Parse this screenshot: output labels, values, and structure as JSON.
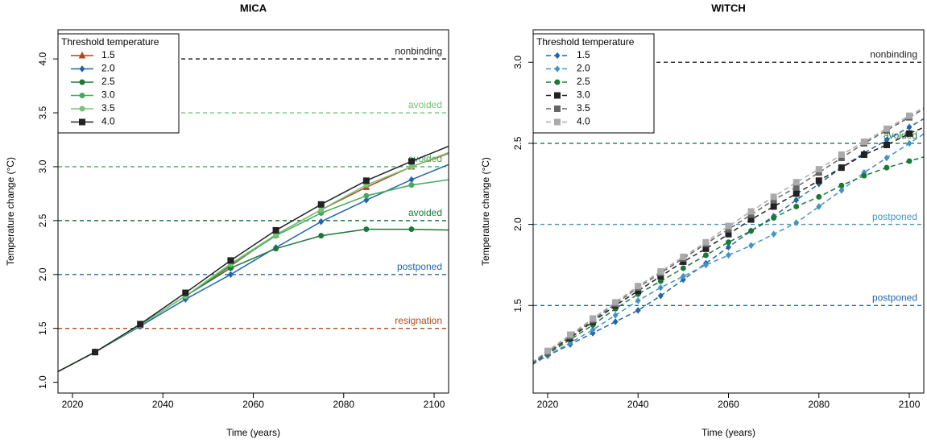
{
  "chart_data": [
    {
      "type": "line",
      "title": "MICA",
      "xlabel": "Time (years)",
      "ylabel": "Temperature change (°C)",
      "legend_title": "Threshold temperature",
      "line_style": "solid",
      "xlim": [
        2016.8,
        2103.2
      ],
      "xticks": [
        2020,
        2040,
        2060,
        2080,
        2100
      ],
      "ylim": [
        0.9,
        4.27
      ],
      "yticks": [
        {
          "value": 1,
          "label": "1.0"
        },
        1.5,
        {
          "value": 2,
          "label": "2.0"
        },
        2.5,
        {
          "value": 3,
          "label": "3.0"
        },
        3.5,
        {
          "value": 4,
          "label": "4.0"
        }
      ],
      "x": [
        2015,
        2025,
        2035,
        2045,
        2055,
        2065,
        2075,
        2085,
        2095,
        2105
      ],
      "series": [
        {
          "name": "1.5",
          "color": "#b5451b",
          "marker": "triangle",
          "values": [
            1.06,
            1.28,
            1.53,
            1.8,
            2.08,
            2.37,
            2.6,
            2.81,
            3.0,
            3.15
          ]
        },
        {
          "name": "2.0",
          "color": "#2166ac",
          "marker": "diamond",
          "values": [
            1.06,
            1.28,
            1.52,
            1.77,
            2.0,
            2.25,
            2.49,
            2.69,
            2.88,
            3.05
          ]
        },
        {
          "name": "2.5",
          "color": "#1b7837",
          "marker": "circle",
          "values": [
            1.06,
            1.28,
            1.53,
            1.8,
            2.06,
            2.24,
            2.36,
            2.42,
            2.42,
            2.41
          ]
        },
        {
          "name": "3.0",
          "color": "#41ab5d",
          "marker": "circle",
          "values": [
            1.06,
            1.28,
            1.53,
            1.8,
            2.09,
            2.36,
            2.57,
            2.73,
            2.83,
            2.89
          ]
        },
        {
          "name": "3.5",
          "color": "#74c476",
          "marker": "circle",
          "values": [
            1.06,
            1.28,
            1.53,
            1.8,
            2.1,
            2.37,
            2.6,
            2.83,
            3.0,
            3.16
          ]
        },
        {
          "name": "4.0",
          "color": "#222222",
          "marker": "square",
          "values": [
            1.06,
            1.28,
            1.54,
            1.83,
            2.13,
            2.41,
            2.65,
            2.87,
            3.05,
            3.22
          ]
        }
      ],
      "hlines": [
        {
          "value": 4.0,
          "label": "nonbinding",
          "color": "#222222"
        },
        {
          "value": 3.5,
          "label": "avoided",
          "color": "#74c476"
        },
        {
          "value": 3.0,
          "label": "avoided",
          "color": "#41ab5d"
        },
        {
          "value": 2.5,
          "label": "avoided",
          "color": "#1b7837"
        },
        {
          "value": 2.0,
          "label": "postponed",
          "color": "#2166ac"
        },
        {
          "value": 1.5,
          "label": "resignation",
          "color": "#b5451b"
        }
      ]
    },
    {
      "type": "line",
      "title": "WITCH",
      "xlabel": "Time (years)",
      "ylabel": "Temperature change (°C)",
      "legend_title": "Threshold temperature",
      "line_style": "dashed",
      "xlim": [
        2016.8,
        2103.2
      ],
      "xticks": [
        2020,
        2040,
        2060,
        2080,
        2100
      ],
      "ylim": [
        0.96,
        3.2
      ],
      "yticks": [
        1.5,
        {
          "value": 2,
          "label": "2.0"
        },
        2.5,
        {
          "value": 3,
          "label": "3.0"
        }
      ],
      "x": [
        2015,
        2020,
        2025,
        2030,
        2035,
        2040,
        2045,
        2050,
        2055,
        2060,
        2065,
        2070,
        2075,
        2080,
        2085,
        2090,
        2095,
        2100,
        2105
      ],
      "series": [
        {
          "name": "1.5",
          "color": "#2166ac",
          "marker": "diamond",
          "values": [
            1.12,
            1.19,
            1.26,
            1.33,
            1.4,
            1.47,
            1.56,
            1.66,
            1.76,
            1.86,
            1.96,
            2.05,
            2.15,
            2.25,
            2.35,
            2.44,
            2.52,
            2.6,
            2.68
          ]
        },
        {
          "name": "2.0",
          "color": "#4393c3",
          "marker": "diamond",
          "values": [
            1.11,
            1.19,
            1.27,
            1.35,
            1.44,
            1.53,
            1.61,
            1.68,
            1.75,
            1.81,
            1.87,
            1.94,
            2.01,
            2.11,
            2.21,
            2.32,
            2.41,
            2.5,
            2.59
          ]
        },
        {
          "name": "2.5",
          "color": "#1b7837",
          "marker": "circle",
          "values": [
            1.11,
            1.2,
            1.29,
            1.38,
            1.48,
            1.57,
            1.65,
            1.73,
            1.81,
            1.89,
            1.96,
            2.04,
            2.11,
            2.17,
            2.24,
            2.3,
            2.35,
            2.39,
            2.43
          ]
        },
        {
          "name": "3.0",
          "color": "#222222",
          "marker": "square",
          "values": [
            1.12,
            1.21,
            1.3,
            1.4,
            1.5,
            1.59,
            1.68,
            1.77,
            1.85,
            1.94,
            2.03,
            2.11,
            2.19,
            2.27,
            2.35,
            2.43,
            2.49,
            2.56,
            2.62
          ]
        },
        {
          "name": "3.5",
          "color": "#666666",
          "marker": "square",
          "values": [
            1.11,
            1.21,
            1.31,
            1.41,
            1.51,
            1.61,
            1.7,
            1.79,
            1.88,
            1.97,
            2.06,
            2.15,
            2.23,
            2.32,
            2.41,
            2.5,
            2.58,
            2.66,
            2.74
          ]
        },
        {
          "name": "4.0",
          "color": "#aaaaaa",
          "marker": "square",
          "values": [
            1.12,
            1.22,
            1.32,
            1.42,
            1.52,
            1.62,
            1.71,
            1.8,
            1.89,
            1.99,
            2.08,
            2.17,
            2.26,
            2.34,
            2.43,
            2.51,
            2.59,
            2.67,
            2.75
          ]
        }
      ],
      "hlines": [
        {
          "value": 3.0,
          "label": "nonbinding",
          "color": "#222222"
        },
        {
          "value": 2.5,
          "label": "avoided",
          "color": "#1b7837"
        },
        {
          "value": 2.0,
          "label": "postponed",
          "color": "#4393c3"
        },
        {
          "value": 1.5,
          "label": "postponed",
          "color": "#2166ac"
        }
      ]
    }
  ]
}
